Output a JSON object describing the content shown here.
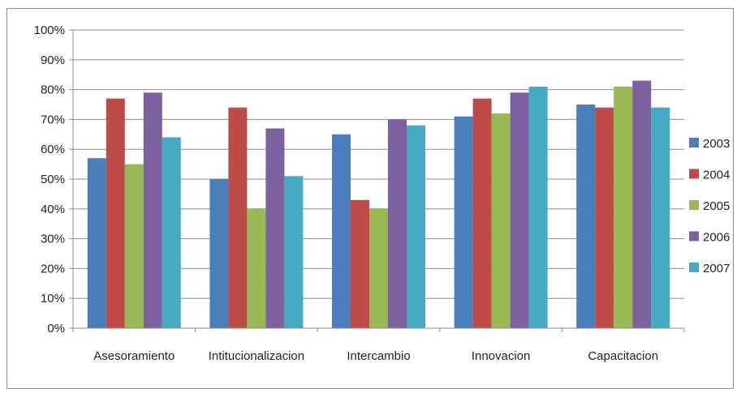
{
  "chart_data": {
    "type": "bar",
    "title": "",
    "xlabel": "",
    "ylabel": "",
    "ylim": [
      0,
      100
    ],
    "ytick_step": 10,
    "ytick_suffix": "%",
    "grid": true,
    "legend_position": "right",
    "categories": [
      "Asesoramiento",
      "Intitucionalizacion",
      "Intercambio",
      "Innovacion",
      "Capacitacion"
    ],
    "series": [
      {
        "name": "2003",
        "color": "#4a7ebb",
        "values": [
          57,
          50,
          65,
          71,
          75
        ]
      },
      {
        "name": "2004",
        "color": "#be4b48",
        "values": [
          77,
          74,
          43,
          77,
          74
        ]
      },
      {
        "name": "2005",
        "color": "#98b954",
        "values": [
          55,
          40,
          40,
          72,
          81
        ]
      },
      {
        "name": "2006",
        "color": "#7d60a0",
        "values": [
          79,
          67,
          70,
          79,
          83
        ]
      },
      {
        "name": "2007",
        "color": "#46aac5",
        "values": [
          64,
          51,
          68,
          81,
          74
        ]
      }
    ]
  }
}
